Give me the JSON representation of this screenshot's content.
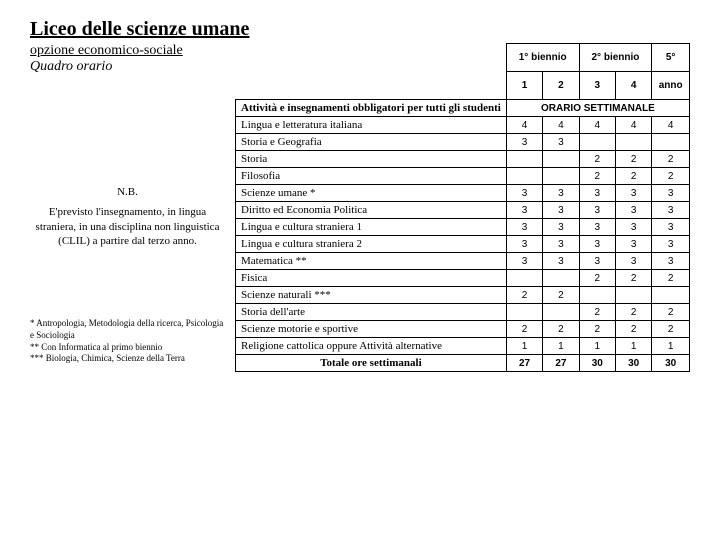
{
  "header": {
    "title": "Liceo delle scienze umane",
    "subtitle": "opzione economico-sociale",
    "quadro": "Quadro orario"
  },
  "nb": {
    "title": "N.B.",
    "text": "E'previsto l'insegnamento, in lingua straniera, in una disciplina non linguistica (CLIL) a partire dal terzo anno."
  },
  "footnotes": {
    "f1": "* Antropologia, Metodologia della ricerca, Psicologia e Sociologia",
    "f2": "** Con Informatica al primo biennio",
    "f3": "*** Biologia, Chimica, Scienze della Terra"
  },
  "table": {
    "col_headers_top": [
      "1° biennio",
      "2° biennio",
      "5°"
    ],
    "col_headers_mid": [
      "1",
      "2",
      "3",
      "4",
      "anno"
    ],
    "activities_header": "Attività e insegnamenti obbligatori per tutti gli studenti",
    "orario_label": "ORARIO SETTIMANALE",
    "subjects": [
      {
        "name": "Lingua e letteratura italiana",
        "vals": [
          "4",
          "4",
          "4",
          "4",
          "4"
        ]
      },
      {
        "name": "Storia e Geografia",
        "vals": [
          "3",
          "3",
          "",
          "",
          ""
        ]
      },
      {
        "name": "Storia",
        "vals": [
          "",
          "",
          "2",
          "2",
          "2"
        ]
      },
      {
        "name": "Filosofia",
        "vals": [
          "",
          "",
          "2",
          "2",
          "2"
        ]
      },
      {
        "name": "Scienze umane *",
        "vals": [
          "3",
          "3",
          "3",
          "3",
          "3"
        ]
      },
      {
        "name": "Diritto ed Economia Politica",
        "vals": [
          "3",
          "3",
          "3",
          "3",
          "3"
        ]
      },
      {
        "name": "Lingua e cultura straniera 1",
        "vals": [
          "3",
          "3",
          "3",
          "3",
          "3"
        ]
      },
      {
        "name": "Lingua e cultura straniera 2",
        "vals": [
          "3",
          "3",
          "3",
          "3",
          "3"
        ]
      },
      {
        "name": "Matematica **",
        "vals": [
          "3",
          "3",
          "3",
          "3",
          "3"
        ]
      },
      {
        "name": "Fisica",
        "vals": [
          "",
          "",
          "2",
          "2",
          "2"
        ]
      },
      {
        "name": "Scienze naturali ***",
        "vals": [
          "2",
          "2",
          "",
          "",
          ""
        ]
      },
      {
        "name": "Storia dell'arte",
        "vals": [
          "",
          "",
          "2",
          "2",
          "2"
        ]
      },
      {
        "name": "Scienze motorie e sportive",
        "vals": [
          "2",
          "2",
          "2",
          "2",
          "2"
        ]
      },
      {
        "name": "Religione cattolica oppure Attività alternative",
        "vals": [
          "1",
          "1",
          "1",
          "1",
          "1"
        ]
      }
    ],
    "total_label": "Totale ore settimanali",
    "total_vals": [
      "27",
      "27",
      "30",
      "30",
      "30"
    ]
  }
}
